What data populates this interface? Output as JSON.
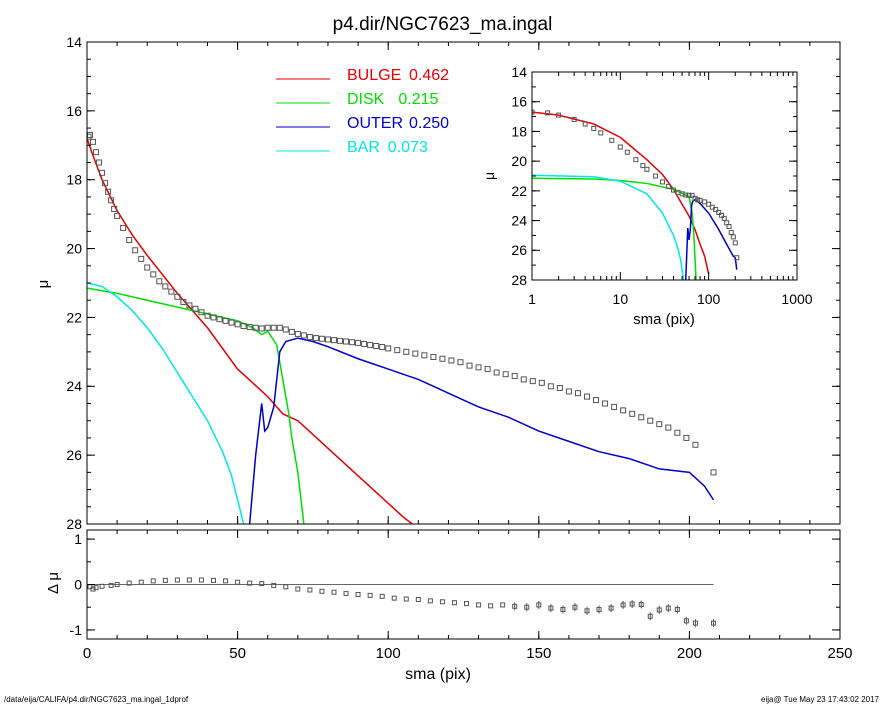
{
  "title": "p4.dir/NGC7623_ma.ingal",
  "footer": {
    "left": "/data/eija/CALIFA/p4.dir/NGC7623_ma.ingal_1dprof",
    "right": "eija@  Tue May 23 17:43:02 2017"
  },
  "colors": {
    "bulge": "#e60000",
    "disk": "#00dd00",
    "outer": "#0000c8",
    "bar": "#00e5e5",
    "data": "#555555"
  },
  "chart_data": [
    {
      "type": "line",
      "xlabel": "",
      "ylabel": "μ",
      "xlim": [
        0,
        250
      ],
      "ylim": [
        28,
        14
      ],
      "y_ticks": [
        14,
        16,
        18,
        20,
        22,
        24,
        26,
        28
      ],
      "legend_placement": "top-center",
      "legend": [
        {
          "name": "BULGE",
          "value": "0.462",
          "color": "#e60000"
        },
        {
          "name": "DISK",
          "value": "0.215",
          "color": "#00dd00"
        },
        {
          "name": "OUTER",
          "value": "0.250",
          "color": "#0000c8"
        },
        {
          "name": "BAR",
          "value": "0.073",
          "color": "#00e5e5"
        }
      ],
      "series": [
        {
          "name": "BULGE",
          "x": [
            0,
            2,
            5,
            10,
            15,
            20,
            25,
            30,
            35,
            40,
            45,
            50,
            55,
            60,
            65,
            70,
            75,
            80,
            85,
            90,
            95,
            100,
            105,
            108
          ],
          "y": [
            16.8,
            17.3,
            18.0,
            18.9,
            19.6,
            20.2,
            20.75,
            21.3,
            21.8,
            22.3,
            22.9,
            23.5,
            23.9,
            24.3,
            24.8,
            25.0,
            25.4,
            25.8,
            26.2,
            26.6,
            27.0,
            27.4,
            27.8,
            28.0
          ]
        },
        {
          "name": "DISK",
          "x": [
            0,
            10,
            20,
            30,
            40,
            50,
            55,
            58,
            60,
            63,
            65,
            67,
            68,
            70,
            72
          ],
          "y": [
            21.15,
            21.3,
            21.5,
            21.7,
            21.9,
            22.1,
            22.3,
            22.5,
            22.4,
            22.8,
            23.8,
            24.8,
            25.5,
            26.5,
            28.0
          ]
        },
        {
          "name": "OUTER",
          "x": [
            54,
            55,
            56,
            58,
            59,
            60,
            62,
            64,
            66,
            68,
            70,
            75,
            80,
            90,
            100,
            110,
            120,
            130,
            140,
            150,
            160,
            170,
            180,
            190,
            200,
            205,
            208
          ],
          "y": [
            28.0,
            27.0,
            26.0,
            24.5,
            25.3,
            25.2,
            24.6,
            23.0,
            22.7,
            22.65,
            22.6,
            22.7,
            22.85,
            23.2,
            23.5,
            23.8,
            24.2,
            24.6,
            24.9,
            25.3,
            25.6,
            25.9,
            26.1,
            26.4,
            26.5,
            26.9,
            27.3
          ]
        },
        {
          "name": "BAR",
          "x": [
            0,
            5,
            10,
            15,
            20,
            25,
            30,
            35,
            40,
            45,
            48,
            50,
            52
          ],
          "y": [
            21.0,
            21.1,
            21.4,
            21.8,
            22.3,
            22.9,
            23.6,
            24.3,
            25.0,
            25.9,
            26.6,
            27.3,
            28.0
          ]
        },
        {
          "name": "data",
          "style": "markers",
          "x": [
            0.5,
            1,
            2,
            3,
            4,
            5,
            6,
            7,
            8,
            9,
            10,
            12,
            14,
            16,
            18,
            20,
            22,
            24,
            26,
            28,
            30,
            32,
            34,
            36,
            38,
            40,
            42,
            44,
            46,
            48,
            50,
            52,
            54,
            56,
            58,
            60,
            62,
            64,
            66,
            68,
            70,
            72,
            74,
            76,
            78,
            80,
            82,
            84,
            86,
            88,
            90,
            92,
            94,
            96,
            98,
            100,
            103,
            106,
            109,
            112,
            115,
            118,
            121,
            124,
            127,
            130,
            133,
            136,
            139,
            142,
            145,
            148,
            151,
            154,
            157,
            160,
            163,
            166,
            169,
            172,
            175,
            178,
            181,
            184,
            187,
            190,
            193,
            196,
            199,
            202,
            208
          ],
          "y": [
            16.75,
            16.7,
            16.9,
            17.2,
            17.5,
            17.8,
            18.1,
            18.35,
            18.6,
            18.85,
            19.05,
            19.4,
            19.75,
            20.05,
            20.3,
            20.55,
            20.75,
            20.95,
            21.1,
            21.25,
            21.4,
            21.55,
            21.65,
            21.75,
            21.85,
            21.95,
            22.0,
            22.05,
            22.1,
            22.15,
            22.2,
            22.25,
            22.28,
            22.3,
            22.32,
            22.3,
            22.3,
            22.3,
            22.35,
            22.42,
            22.48,
            22.52,
            22.57,
            22.6,
            22.62,
            22.64,
            22.66,
            22.68,
            22.7,
            22.72,
            22.74,
            22.77,
            22.8,
            22.83,
            22.86,
            22.9,
            22.95,
            23.0,
            23.05,
            23.1,
            23.15,
            23.2,
            23.25,
            23.3,
            23.4,
            23.45,
            23.5,
            23.6,
            23.65,
            23.7,
            23.8,
            23.85,
            23.9,
            24.0,
            24.05,
            24.15,
            24.2,
            24.3,
            24.4,
            24.5,
            24.6,
            24.7,
            24.8,
            24.9,
            25.0,
            25.1,
            25.2,
            25.35,
            25.5,
            25.7,
            26.5
          ]
        }
      ]
    },
    {
      "type": "scatter",
      "xlabel": "sma (pix)",
      "ylabel": "Δ μ",
      "xlim": [
        0,
        250
      ],
      "ylim": [
        -1.2,
        1.2
      ],
      "x_ticks": [
        0,
        50,
        100,
        150,
        200,
        250
      ],
      "y_ticks": [
        1,
        0,
        -1
      ],
      "reference_line": {
        "x": [
          0,
          208
        ],
        "y": 0
      },
      "series": [
        {
          "name": "residual",
          "x": [
            1,
            2,
            3,
            5,
            8,
            10,
            14,
            18,
            22,
            26,
            30,
            34,
            38,
            42,
            46,
            50,
            54,
            58,
            62,
            66,
            70,
            74,
            78,
            82,
            86,
            90,
            94,
            98,
            102,
            106,
            110,
            114,
            118,
            122,
            126,
            130,
            134,
            138,
            142,
            146,
            150,
            154,
            158,
            162,
            166,
            170,
            174,
            178,
            181,
            184,
            187,
            190,
            193,
            196,
            199,
            202,
            208
          ],
          "y": [
            -0.05,
            -0.1,
            -0.07,
            -0.04,
            -0.02,
            0.0,
            0.03,
            0.05,
            0.08,
            0.09,
            0.1,
            0.1,
            0.1,
            0.09,
            0.08,
            0.05,
            0.03,
            0.02,
            -0.02,
            -0.05,
            -0.1,
            -0.12,
            -0.15,
            -0.17,
            -0.2,
            -0.22,
            -0.24,
            -0.26,
            -0.3,
            -0.32,
            -0.33,
            -0.36,
            -0.38,
            -0.4,
            -0.42,
            -0.45,
            -0.47,
            -0.45,
            -0.48,
            -0.5,
            -0.45,
            -0.52,
            -0.55,
            -0.5,
            -0.58,
            -0.55,
            -0.52,
            -0.45,
            -0.43,
            -0.44,
            -0.7,
            -0.56,
            -0.52,
            -0.55,
            -0.8,
            -0.85,
            -0.85
          ]
        }
      ]
    },
    {
      "type": "line",
      "inset": true,
      "xlabel": "sma (pix)",
      "ylabel": "μ",
      "x_scale": "log",
      "xlim": [
        1,
        1000
      ],
      "ylim": [
        28,
        14
      ],
      "x_ticks": [
        1,
        10,
        100,
        1000
      ],
      "y_ticks": [
        14,
        16,
        18,
        20,
        22,
        24,
        26,
        28
      ],
      "series": [
        {
          "name": "BULGE",
          "x": [
            1,
            2,
            5,
            10,
            20,
            30,
            40,
            50,
            60,
            70,
            80,
            90,
            100
          ],
          "y": [
            16.7,
            16.9,
            17.5,
            18.4,
            19.9,
            20.9,
            21.9,
            22.9,
            23.7,
            24.6,
            25.6,
            26.4,
            27.6
          ]
        },
        {
          "name": "DISK",
          "x": [
            1,
            5,
            10,
            20,
            40,
            60,
            65,
            68,
            70,
            72
          ],
          "y": [
            21.15,
            21.2,
            21.3,
            21.5,
            21.9,
            22.4,
            23.5,
            25.0,
            26.5,
            28.0
          ]
        },
        {
          "name": "OUTER",
          "x": [
            55,
            58,
            60,
            62,
            64,
            66,
            70,
            80,
            100,
            130,
            160,
            190,
            200,
            208
          ],
          "y": [
            28.0,
            24.5,
            25.3,
            24.6,
            23.0,
            22.7,
            22.6,
            22.85,
            23.5,
            24.6,
            25.6,
            26.4,
            26.5,
            27.3
          ]
        },
        {
          "name": "BAR",
          "x": [
            1,
            5,
            10,
            20,
            30,
            40,
            45,
            48,
            50,
            52
          ],
          "y": [
            20.95,
            21.05,
            21.35,
            22.2,
            23.5,
            25.0,
            25.9,
            26.6,
            27.3,
            28.0
          ]
        },
        {
          "name": "data",
          "style": "markers",
          "x": [
            1,
            1.5,
            2,
            3,
            4,
            5,
            6,
            8,
            10,
            12,
            15,
            18,
            20,
            25,
            30,
            35,
            40,
            45,
            50,
            55,
            60,
            65,
            70,
            75,
            80,
            90,
            100,
            110,
            120,
            130,
            140,
            150,
            160,
            170,
            180,
            190,
            200,
            208
          ],
          "y": [
            16.7,
            16.75,
            16.9,
            17.2,
            17.5,
            17.8,
            18.1,
            18.6,
            19.05,
            19.4,
            19.9,
            20.3,
            20.55,
            21.0,
            21.4,
            21.7,
            21.95,
            22.1,
            22.2,
            22.28,
            22.3,
            22.3,
            22.5,
            22.6,
            22.64,
            22.74,
            22.9,
            23.1,
            23.25,
            23.45,
            23.65,
            23.85,
            24.15,
            24.4,
            24.8,
            25.1,
            25.5,
            26.5
          ]
        }
      ]
    }
  ]
}
